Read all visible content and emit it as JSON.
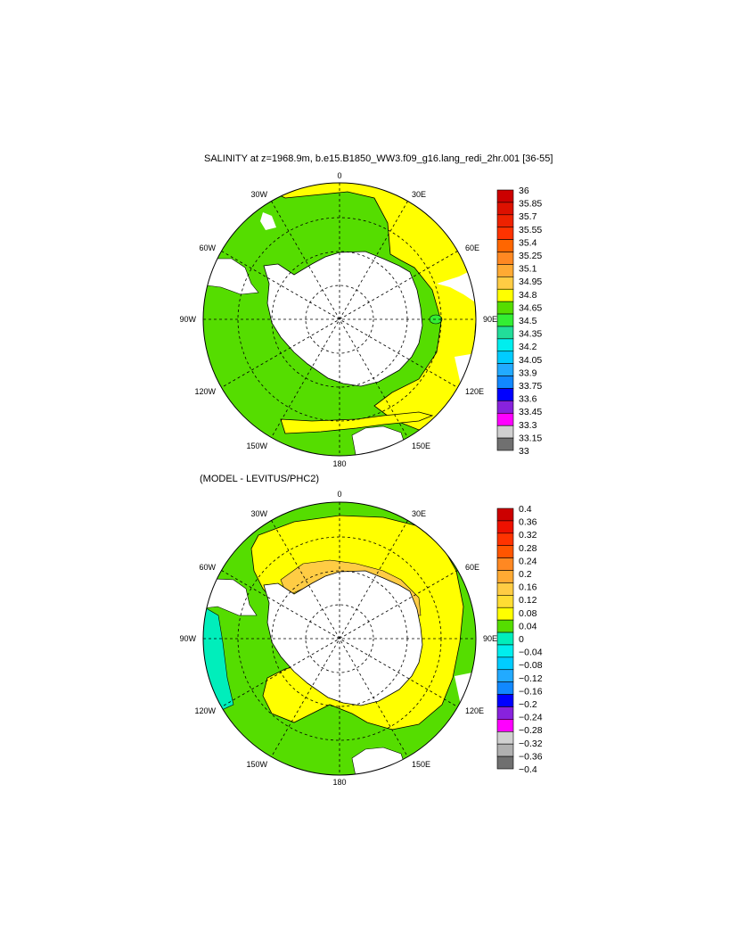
{
  "panels": [
    {
      "title": "SALINITY at z=1968.9m, b.e15.B1850_WW3.f09_g16.lang_redi_2hr.001 [36-55]",
      "lon_labels": [
        "0",
        "30E",
        "60E",
        "90E",
        "120E",
        "150E",
        "180",
        "150W",
        "120W",
        "90W",
        "60W",
        "30W"
      ],
      "colorbar": {
        "labels": [
          "36",
          "35.85",
          "35.7",
          "35.55",
          "35.4",
          "35.25",
          "35.1",
          "34.95",
          "34.8",
          "34.65",
          "34.5",
          "34.35",
          "34.2",
          "34.05",
          "33.9",
          "33.75",
          "33.6",
          "33.45",
          "33.3",
          "33.15",
          "33"
        ],
        "colors": [
          "#cc0000",
          "#dd1100",
          "#ee2200",
          "#ff3300",
          "#ff6600",
          "#ff8822",
          "#ffaa33",
          "#ffcc44",
          "#ffff00",
          "#55dd00",
          "#33ee33",
          "#22dd99",
          "#00eeee",
          "#00ccff",
          "#22aaff",
          "#1188ff",
          "#0000ff",
          "#8822dd",
          "#ff00ff",
          "#d0d0d0",
          "#707070"
        ]
      }
    },
    {
      "title": "(MODEL - LEVITUS/PHC2)",
      "lon_labels": [
        "0",
        "30E",
        "60E",
        "90E",
        "120E",
        "150E",
        "180",
        "150W",
        "120W",
        "90W",
        "60W",
        "30W"
      ],
      "colorbar": {
        "labels": [
          "0.4",
          "0.36",
          "0.32",
          "0.28",
          "0.24",
          "0.2",
          "0.16",
          "0.12",
          "0.08",
          "0.04",
          "0",
          "−0.04",
          "−0.08",
          "−0.12",
          "−0.16",
          "−0.2",
          "−0.24",
          "−0.28",
          "−0.32",
          "−0.36",
          "−0.4"
        ],
        "colors": [
          "#cc0000",
          "#ee1100",
          "#ff3300",
          "#ff5500",
          "#ff8822",
          "#ffaa33",
          "#ffcc44",
          "#ffdd33",
          "#ffff00",
          "#55dd00",
          "#00eebb",
          "#00eeee",
          "#00ccff",
          "#22aaff",
          "#1188ff",
          "#0000ff",
          "#8822dd",
          "#ff00ff",
          "#d0d0d0",
          "#b0b0b0",
          "#707070"
        ]
      }
    }
  ]
}
